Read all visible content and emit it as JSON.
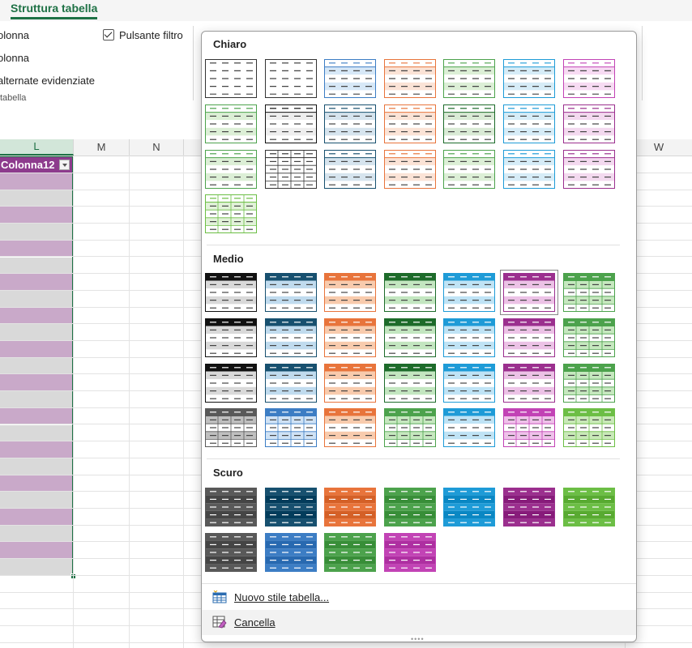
{
  "ribbon": {
    "active_tab": "Struttura tabella",
    "options": {
      "first_column": "olonna",
      "last_column": "olonna",
      "banded_columns": " alternate evidenziate",
      "filter_button": "Pulsante filtro"
    },
    "group_label": "tabella"
  },
  "sheet": {
    "columns": [
      "L",
      "M",
      "N",
      "W"
    ],
    "table_header": "Colonna12",
    "colors": {
      "header": "#8d3b8d",
      "band_dark": "#c9a9c9",
      "band_light": "#d9d9d9",
      "accent": "#1e7145"
    }
  },
  "gallery": {
    "sections": [
      {
        "title": "Chiaro",
        "rows": [
          [
            "light-plain",
            "light-plain",
            "light-blue",
            "light-orange",
            "light-green",
            "light-cyan",
            "light-pink"
          ],
          [
            "light-green",
            "light-black",
            "light-navy",
            "light-orange",
            "light-dkgreen",
            "light-cyan",
            "light-purple"
          ],
          [
            "light-green",
            "light-grid",
            "light-navy",
            "light-orange",
            "light-green",
            "light-cyan",
            "light-purple"
          ],
          [
            "light-lime"
          ]
        ]
      },
      {
        "title": "Medio",
        "rows": [
          [
            "med-black",
            "med-navy",
            "med-orange",
            "med-dkgreen",
            "med-cyan",
            "med-purple",
            "med-green"
          ],
          [
            "med-black",
            "med-navy",
            "med-orange",
            "med-dkgreen",
            "med-cyan",
            "med-purple",
            "med-green"
          ],
          [
            "med-black",
            "med-navy",
            "med-orange",
            "med-dkgreen",
            "med-cyan",
            "med-purple",
            "med-green"
          ],
          [
            "med-grey",
            "med-blue",
            "med-orange",
            "med-green",
            "med-cyan",
            "med-pink",
            "med-lime"
          ]
        ]
      },
      {
        "title": "Scuro",
        "rows": [
          [
            "dark-grey",
            "dark-navy",
            "dark-orange",
            "dark-green",
            "dark-cyan",
            "dark-purple",
            "dark-lime"
          ],
          [
            "dark-grey2",
            "dark-blue",
            "dark-green2",
            "dark-pink"
          ]
        ]
      }
    ],
    "menu": {
      "new_style": "Nuovo stile tabella...",
      "clear": "Cancella",
      "new_style_icon": "table-style-icon",
      "clear_icon": "eraser-table-icon"
    }
  }
}
